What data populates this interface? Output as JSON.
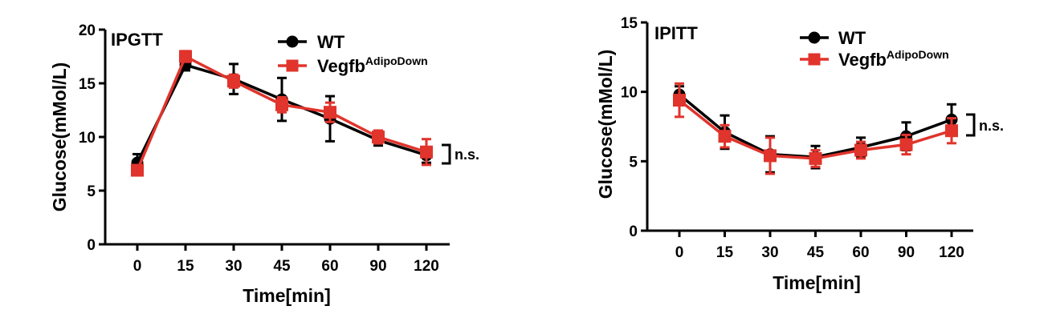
{
  "chart_data": [
    {
      "type": "line",
      "title": "IPGTT",
      "xlabel": "Time[min]",
      "ylabel": "Glucose(mMol/L)",
      "categories": [
        "0",
        "15",
        "30",
        "45",
        "60",
        "90",
        "120"
      ],
      "yticks": [
        "0",
        "5",
        "10",
        "15",
        "20"
      ],
      "ylim": [
        0,
        20
      ],
      "grid": false,
      "legend_position": "top-right",
      "annotation": "n.s.",
      "series": [
        {
          "name": "WT",
          "name_sup": "",
          "color": "#000000",
          "marker": "circle",
          "values": [
            7.6,
            16.7,
            15.4,
            13.5,
            11.7,
            9.7,
            8.3
          ],
          "errors": [
            0.8,
            0.5,
            1.4,
            2.0,
            2.1,
            0.5,
            0.7
          ]
        },
        {
          "name": "Vegfb",
          "name_sup": "AdipoDown",
          "color": "#e0342c",
          "marker": "square",
          "values": [
            6.9,
            17.5,
            15.2,
            13.0,
            12.3,
            10.0,
            8.6
          ],
          "errors": [
            0.4,
            0.5,
            0.6,
            0.7,
            0.9,
            0.6,
            1.2
          ]
        }
      ]
    },
    {
      "type": "line",
      "title": "IPITT",
      "xlabel": "Time[min]",
      "ylabel": "Glucose(mMol/L)",
      "categories": [
        "0",
        "15",
        "30",
        "45",
        "60",
        "90",
        "120"
      ],
      "yticks": [
        "0",
        "5",
        "10",
        "15"
      ],
      "ylim": [
        0,
        15
      ],
      "grid": false,
      "legend_position": "top-right",
      "annotation": "n.s.",
      "series": [
        {
          "name": "WT",
          "name_sup": "",
          "color": "#000000",
          "marker": "circle",
          "values": [
            9.8,
            7.1,
            5.5,
            5.3,
            6.0,
            6.8,
            8.0
          ],
          "errors": [
            0.6,
            1.2,
            1.3,
            0.8,
            0.7,
            1.0,
            1.1
          ]
        },
        {
          "name": "Vegfb",
          "name_sup": "AdipoDown",
          "color": "#e0342c",
          "marker": "square",
          "values": [
            9.4,
            6.8,
            5.4,
            5.2,
            5.8,
            6.2,
            7.2
          ],
          "errors": [
            1.2,
            0.8,
            1.3,
            0.6,
            0.6,
            0.7,
            0.9
          ]
        }
      ]
    }
  ]
}
